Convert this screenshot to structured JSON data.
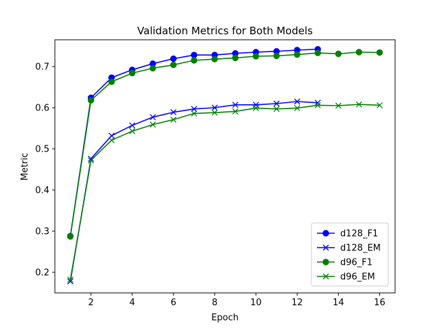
{
  "chart_data": {
    "type": "line",
    "title": "Validation Metrics for Both Models",
    "xlabel": "Epoch",
    "ylabel": "Metric",
    "xlim": [
      0.25,
      16.75
    ],
    "ylim": [
      0.15,
      0.765
    ],
    "xticks": [
      2,
      4,
      6,
      8,
      10,
      12,
      14,
      16
    ],
    "yticks": [
      0.2,
      0.3,
      0.4,
      0.5,
      0.6,
      0.7
    ],
    "grid": false,
    "legend_position": "lower-right",
    "series": [
      {
        "name": "d128_F1",
        "color": "#0000ff",
        "marker": "circle",
        "x": [
          1,
          2,
          3,
          4,
          5,
          6,
          7,
          8,
          9,
          10,
          11,
          12,
          13
        ],
        "y": [
          0.288,
          0.624,
          0.673,
          0.692,
          0.707,
          0.719,
          0.728,
          0.728,
          0.732,
          0.735,
          0.737,
          0.74,
          0.742
        ]
      },
      {
        "name": "d128_EM",
        "color": "#0000ff",
        "marker": "x",
        "x": [
          1,
          2,
          3,
          4,
          5,
          6,
          7,
          8,
          9,
          10,
          11,
          12,
          13
        ],
        "y": [
          0.178,
          0.476,
          0.532,
          0.557,
          0.577,
          0.589,
          0.597,
          0.6,
          0.607,
          0.607,
          0.61,
          0.615,
          0.612
        ]
      },
      {
        "name": "d96_F1",
        "color": "#008000",
        "marker": "circle",
        "x": [
          1,
          2,
          3,
          4,
          5,
          6,
          7,
          8,
          9,
          10,
          11,
          12,
          13,
          14,
          15,
          16
        ],
        "y": [
          0.287,
          0.618,
          0.663,
          0.684,
          0.696,
          0.704,
          0.715,
          0.718,
          0.721,
          0.725,
          0.726,
          0.729,
          0.733,
          0.731,
          0.735,
          0.734
        ]
      },
      {
        "name": "d96_EM",
        "color": "#008000",
        "marker": "x",
        "x": [
          1,
          2,
          3,
          4,
          5,
          6,
          7,
          8,
          9,
          10,
          11,
          12,
          13,
          14,
          15,
          16
        ],
        "y": [
          0.182,
          0.472,
          0.521,
          0.543,
          0.559,
          0.571,
          0.586,
          0.588,
          0.591,
          0.599,
          0.597,
          0.599,
          0.606,
          0.605,
          0.608,
          0.606
        ]
      }
    ]
  }
}
